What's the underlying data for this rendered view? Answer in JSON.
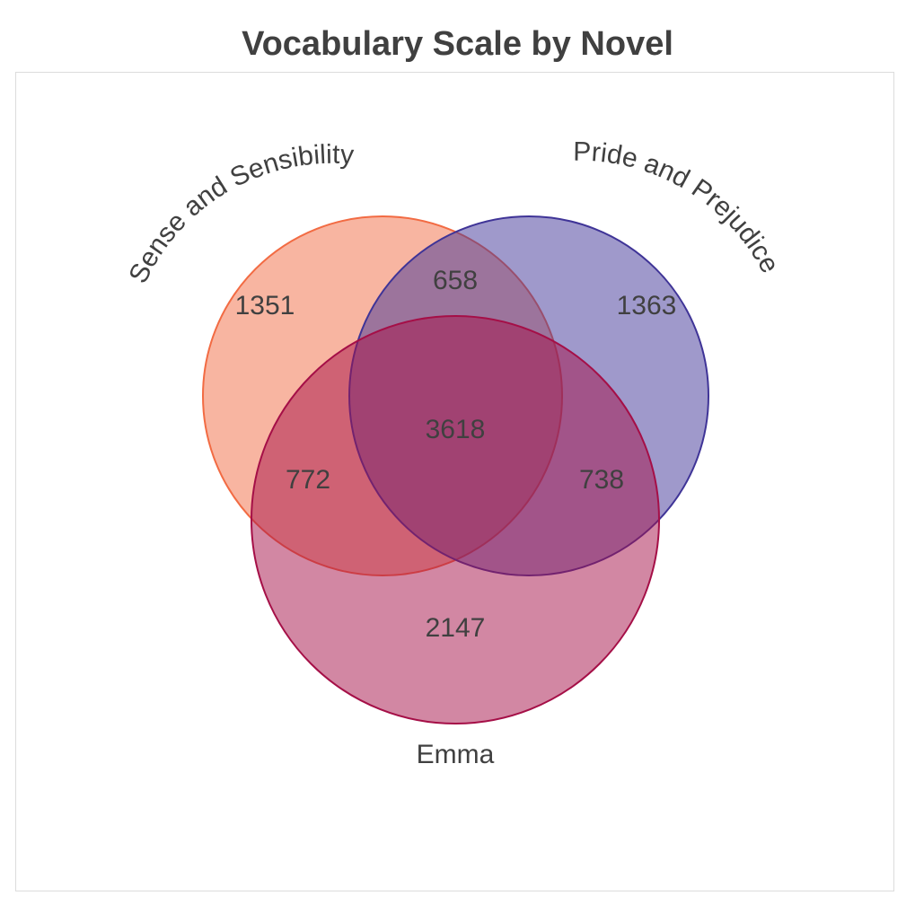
{
  "chart_data": {
    "type": "venn",
    "title": "Vocabulary Scale by Novel",
    "sets": [
      {
        "name": "Sense and Sensibility",
        "color": "#f26b43"
      },
      {
        "name": "Pride and Prejudice",
        "color": "#3f3497"
      },
      {
        "name": "Emma",
        "color": "#a50f47"
      }
    ],
    "regions": [
      {
        "sets": [
          "Sense and Sensibility"
        ],
        "value": 1351
      },
      {
        "sets": [
          "Pride and Prejudice"
        ],
        "value": 1363
      },
      {
        "sets": [
          "Emma"
        ],
        "value": 2147
      },
      {
        "sets": [
          "Sense and Sensibility",
          "Pride and Prejudice"
        ],
        "value": 658
      },
      {
        "sets": [
          "Sense and Sensibility",
          "Emma"
        ],
        "value": 772
      },
      {
        "sets": [
          "Pride and Prejudice",
          "Emma"
        ],
        "value": 738
      },
      {
        "sets": [
          "Sense and Sensibility",
          "Pride and Prejudice",
          "Emma"
        ],
        "value": 3618
      }
    ]
  }
}
